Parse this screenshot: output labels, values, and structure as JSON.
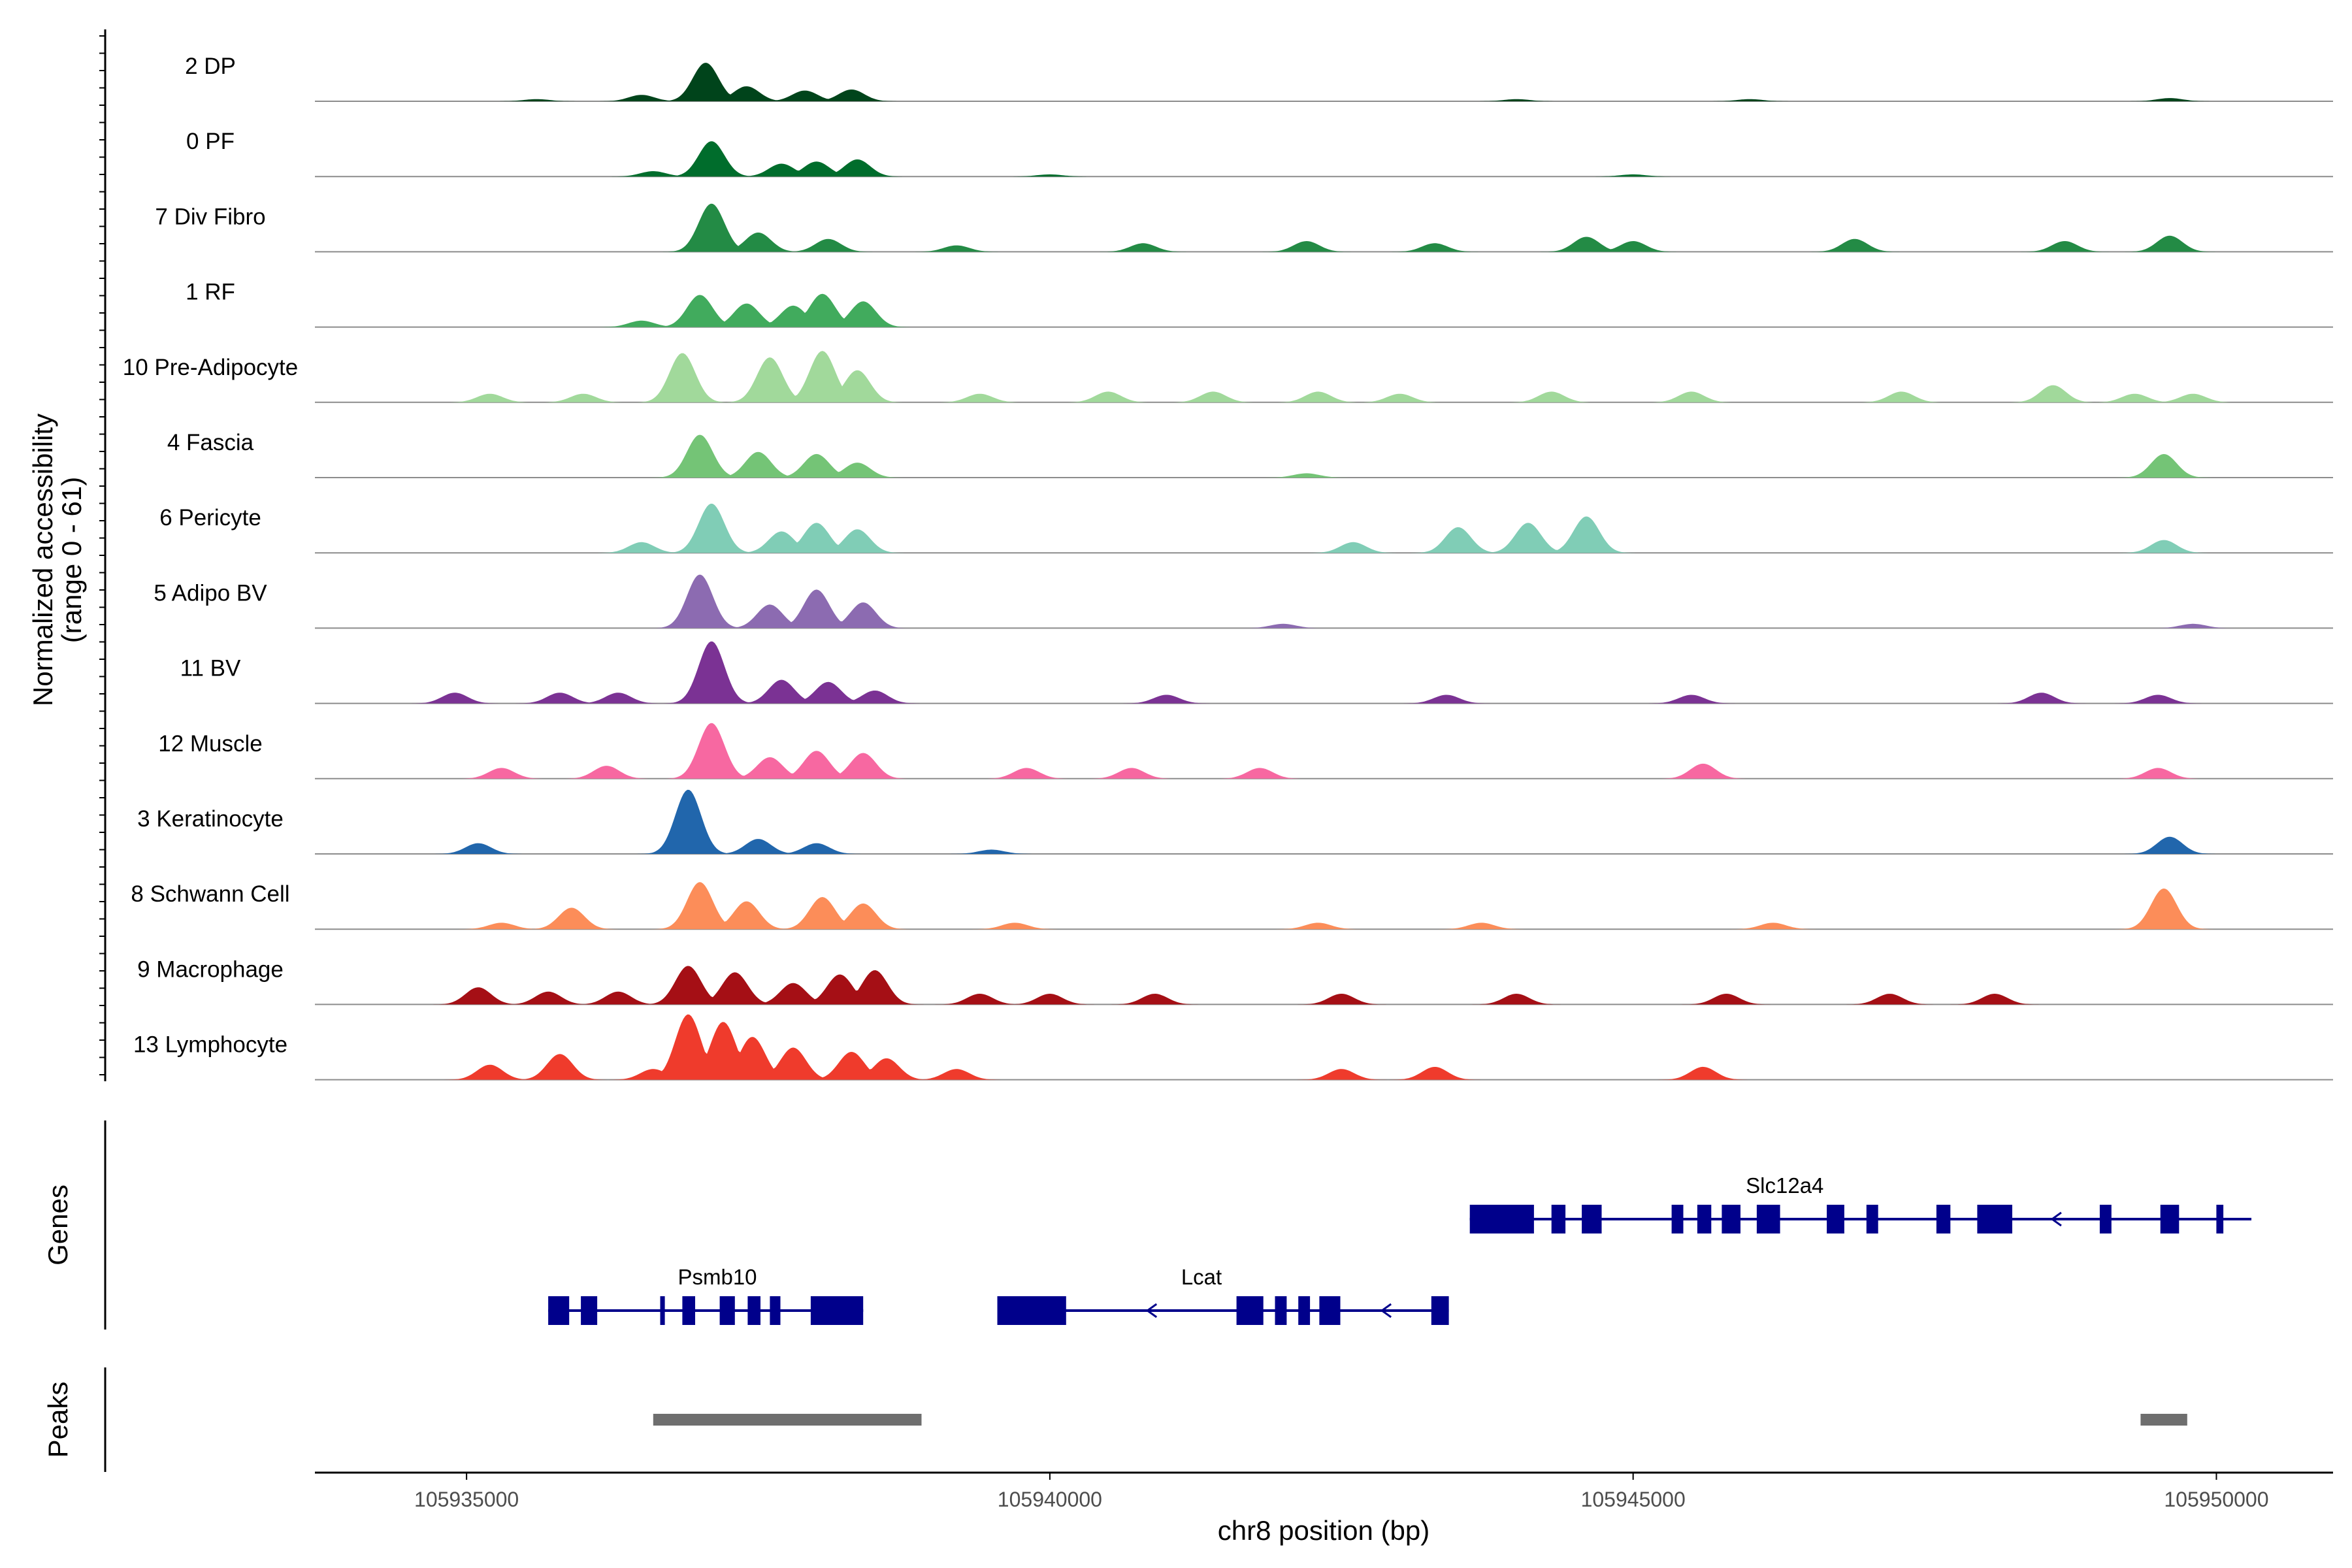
{
  "chart_data": {
    "type": "area",
    "title": "",
    "ylabel_line1": "Normalized accessibility",
    "ylabel_line2": "(range 0 - 61)",
    "xlabel": "chr8 position (bp)",
    "xlim": [
      105933700,
      105951000
    ],
    "ylim": [
      0,
      61
    ],
    "x_ticks": [
      105935000,
      105940000,
      105945000,
      105950000
    ],
    "x_tick_labels": [
      "105935000",
      "105940000",
      "105945000",
      "105950000"
    ],
    "panel_titles": {
      "genes": "Genes",
      "peaks": "Peaks"
    },
    "series": [
      {
        "name": "2 DP",
        "color": "#00441b",
        "peaks": [
          [
            105937050,
            36
          ],
          [
            105937400,
            14
          ],
          [
            105937900,
            10
          ],
          [
            105938300,
            11
          ],
          [
            105936500,
            6
          ],
          [
            105935600,
            2
          ],
          [
            105949600,
            3
          ],
          [
            105946000,
            2
          ],
          [
            105944000,
            2
          ]
        ]
      },
      {
        "name": "0 PF",
        "color": "#006d2c",
        "peaks": [
          [
            105937100,
            33
          ],
          [
            105937700,
            12
          ],
          [
            105938000,
            14
          ],
          [
            105938350,
            16
          ],
          [
            105936600,
            5
          ],
          [
            105940000,
            2
          ],
          [
            105945000,
            2
          ]
        ]
      },
      {
        "name": "7 Div Fibro",
        "color": "#238b45",
        "peaks": [
          [
            105937100,
            45
          ],
          [
            105937500,
            18
          ],
          [
            105938100,
            12
          ],
          [
            105939200,
            6
          ],
          [
            105940800,
            8
          ],
          [
            105942200,
            10
          ],
          [
            105943300,
            8
          ],
          [
            105944600,
            14
          ],
          [
            105945000,
            10
          ],
          [
            105946900,
            12
          ],
          [
            105948700,
            10
          ],
          [
            105949600,
            15
          ]
        ]
      },
      {
        "name": "1 RF",
        "color": "#41ab5d",
        "peaks": [
          [
            105937000,
            30
          ],
          [
            105937400,
            22
          ],
          [
            105937800,
            20
          ],
          [
            105938050,
            31
          ],
          [
            105938400,
            24
          ],
          [
            105936500,
            6
          ]
        ]
      },
      {
        "name": "10 Pre-Adipocyte",
        "color": "#a1d99b",
        "peaks": [
          [
            105936850,
            46
          ],
          [
            105937600,
            42
          ],
          [
            105938050,
            48
          ],
          [
            105938350,
            30
          ],
          [
            105936000,
            8
          ],
          [
            105935200,
            8
          ],
          [
            105939400,
            8
          ],
          [
            105940500,
            10
          ],
          [
            105941400,
            10
          ],
          [
            105942300,
            10
          ],
          [
            105943000,
            8
          ],
          [
            105944300,
            10
          ],
          [
            105945500,
            10
          ],
          [
            105947300,
            10
          ],
          [
            105948600,
            16
          ],
          [
            105949300,
            8
          ],
          [
            105949800,
            8
          ]
        ]
      },
      {
        "name": "4 Fascia",
        "color": "#74c476",
        "peaks": [
          [
            105937000,
            40
          ],
          [
            105937500,
            24
          ],
          [
            105938000,
            22
          ],
          [
            105938350,
            14
          ],
          [
            105942200,
            4
          ],
          [
            105949550,
            22
          ]
        ]
      },
      {
        "name": "6 Pericyte",
        "color": "#80cdb6",
        "peaks": [
          [
            105937100,
            46
          ],
          [
            105937700,
            20
          ],
          [
            105938000,
            28
          ],
          [
            105938350,
            22
          ],
          [
            105936500,
            10
          ],
          [
            105943500,
            24
          ],
          [
            105944100,
            28
          ],
          [
            105944600,
            34
          ],
          [
            105942600,
            10
          ],
          [
            105949550,
            12
          ]
        ]
      },
      {
        "name": "5 Adipo BV",
        "color": "#8c6bb1",
        "peaks": [
          [
            105937000,
            50
          ],
          [
            105937600,
            22
          ],
          [
            105938000,
            36
          ],
          [
            105938400,
            24
          ],
          [
            105942000,
            4
          ],
          [
            105949800,
            4
          ]
        ]
      },
      {
        "name": "11 BV",
        "color": "#7b3294",
        "peaks": [
          [
            105937100,
            58
          ],
          [
            105937700,
            22
          ],
          [
            105938100,
            20
          ],
          [
            105938500,
            12
          ],
          [
            105934900,
            10
          ],
          [
            105935800,
            10
          ],
          [
            105936300,
            10
          ],
          [
            105941000,
            8
          ],
          [
            105943400,
            8
          ],
          [
            105945500,
            8
          ],
          [
            105948500,
            10
          ],
          [
            105949500,
            8
          ]
        ]
      },
      {
        "name": "12 Muscle",
        "color": "#f768a1",
        "peaks": [
          [
            105937100,
            52
          ],
          [
            105937600,
            20
          ],
          [
            105938000,
            26
          ],
          [
            105938400,
            24
          ],
          [
            105935300,
            10
          ],
          [
            105936200,
            12
          ],
          [
            105939800,
            10
          ],
          [
            105940700,
            10
          ],
          [
            105941800,
            10
          ],
          [
            105945600,
            14
          ],
          [
            105949500,
            10
          ]
        ]
      },
      {
        "name": "3 Keratinocyte",
        "color": "#2166ac",
        "peaks": [
          [
            105936900,
            60
          ],
          [
            105937500,
            14
          ],
          [
            105938000,
            10
          ],
          [
            105935100,
            10
          ],
          [
            105939500,
            4
          ],
          [
            105949600,
            16
          ]
        ]
      },
      {
        "name": "8 Schwann Cell",
        "color": "#fc8d59",
        "peaks": [
          [
            105937000,
            44
          ],
          [
            105937400,
            26
          ],
          [
            105938050,
            30
          ],
          [
            105938400,
            24
          ],
          [
            105935900,
            20
          ],
          [
            105935300,
            6
          ],
          [
            105939700,
            6
          ],
          [
            105942300,
            6
          ],
          [
            105943700,
            6
          ],
          [
            105946200,
            6
          ],
          [
            105949550,
            38
          ]
        ]
      },
      {
        "name": "9 Macrophage",
        "color": "#a50f15",
        "peaks": [
          [
            105936900,
            36
          ],
          [
            105937300,
            30
          ],
          [
            105937800,
            20
          ],
          [
            105938200,
            28
          ],
          [
            105938500,
            32
          ],
          [
            105935100,
            16
          ],
          [
            105935700,
            12
          ],
          [
            105936300,
            12
          ],
          [
            105939400,
            10
          ],
          [
            105940000,
            10
          ],
          [
            105940900,
            10
          ],
          [
            105942500,
            10
          ],
          [
            105944000,
            10
          ],
          [
            105945800,
            10
          ],
          [
            105947200,
            10
          ],
          [
            105948100,
            10
          ]
        ]
      },
      {
        "name": "13 Lymphocyte",
        "color": "#ef3b2c",
        "peaks": [
          [
            105936900,
            61
          ],
          [
            105937200,
            54
          ],
          [
            105937450,
            40
          ],
          [
            105937800,
            30
          ],
          [
            105938300,
            26
          ],
          [
            105938600,
            20
          ],
          [
            105935800,
            24
          ],
          [
            105935200,
            14
          ],
          [
            105936600,
            10
          ],
          [
            105939200,
            10
          ],
          [
            105942500,
            10
          ],
          [
            105943300,
            12
          ],
          [
            105945600,
            12
          ]
        ]
      }
    ],
    "genes": [
      {
        "name": "Slc12a4",
        "row": 1,
        "start": 105943600,
        "end": 105950300,
        "strand": "-",
        "exons": [
          [
            105943600,
            105944150
          ],
          [
            105944300,
            105944420
          ],
          [
            105944560,
            105944730
          ],
          [
            105945330,
            105945430
          ],
          [
            105945550,
            105945670
          ],
          [
            105945760,
            105945920
          ],
          [
            105946060,
            105946260
          ],
          [
            105946660,
            105946810
          ],
          [
            105947000,
            105947100
          ],
          [
            105947600,
            105947720
          ],
          [
            105947950,
            105948250
          ],
          [
            105949000,
            105949100
          ],
          [
            105949520,
            105949680
          ],
          [
            105950000,
            105950060
          ]
        ]
      },
      {
        "name": "Psmb10",
        "row": 2,
        "start": 105935700,
        "end": 105938400,
        "strand": "-",
        "exons": [
          [
            105935700,
            105935880
          ],
          [
            105935980,
            105936120
          ],
          [
            105936660,
            105936700
          ],
          [
            105936850,
            105936960
          ],
          [
            105937170,
            105937300
          ],
          [
            105937410,
            105937520
          ],
          [
            105937600,
            105937690
          ],
          [
            105937950,
            105938400
          ]
        ]
      },
      {
        "name": "Lcat",
        "row": 2,
        "start": 105939550,
        "end": 105943420,
        "strand": "-",
        "exons": [
          [
            105939550,
            105940140
          ],
          [
            105941600,
            105941830
          ],
          [
            105941930,
            105942030
          ],
          [
            105942130,
            105942230
          ],
          [
            105942310,
            105942490
          ],
          [
            105943270,
            105943420
          ]
        ]
      }
    ],
    "peaks_track": [
      [
        105936600,
        105938900
      ],
      [
        105949350,
        105949750
      ]
    ]
  }
}
